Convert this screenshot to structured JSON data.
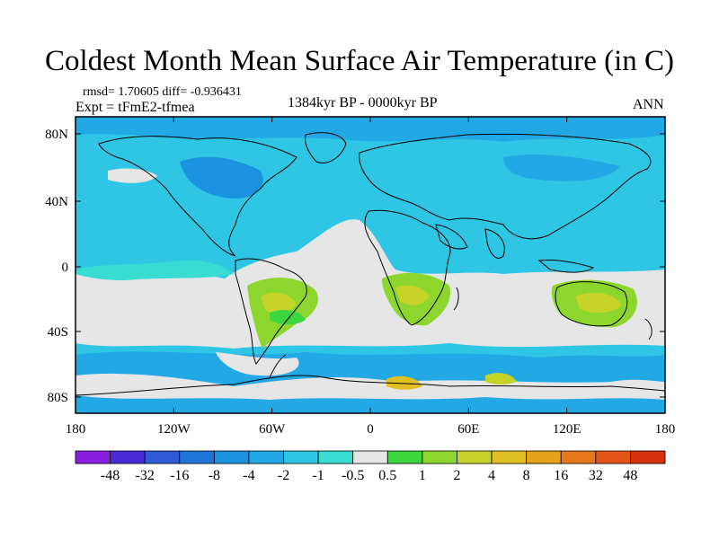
{
  "title": "Coldest Month Mean Surface Air Temperature (in C)",
  "stats_line": "rmsd= 1.70605 diff= -0.936431",
  "experiment_line": "Expt = tFmE2-tfmea",
  "period_line": "1384kyr BP - 0000kyr BP",
  "season_label": "ANN",
  "lat_ticks": [
    "80N",
    "40N",
    "0",
    "40S",
    "80S"
  ],
  "lon_ticks": [
    "180",
    "120W",
    "60W",
    "0",
    "60E",
    "120E",
    "180"
  ],
  "colorbar": {
    "labels": [
      "-48",
      "-32",
      "-16",
      "-8",
      "-4",
      "-2",
      "-1",
      "-0.5",
      "0.5",
      "1",
      "2",
      "4",
      "8",
      "16",
      "32",
      "48"
    ],
    "colors": [
      "#8a1fe0",
      "#4a2ad6",
      "#2f5ad6",
      "#1f74d8",
      "#1a92e0",
      "#23a8e6",
      "#2ec6e4",
      "#38dcd0",
      "#e6e6e6",
      "#3ed63e",
      "#8cd62e",
      "#c6d42a",
      "#e0c022",
      "#e6a21c",
      "#e6781a",
      "#e25418",
      "#d8300f"
    ]
  }
}
